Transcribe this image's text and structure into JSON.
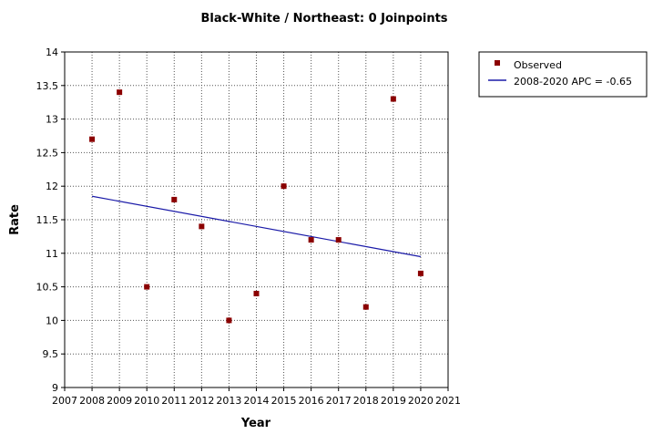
{
  "chart_data": {
    "type": "scatter",
    "title": "Black-White / Northeast: 0 Joinpoints",
    "xlabel": "Year",
    "ylabel": "Rate",
    "xlim": [
      2007,
      2021
    ],
    "ylim": [
      9,
      14
    ],
    "x_ticks": [
      2007,
      2008,
      2009,
      2010,
      2011,
      2012,
      2013,
      2014,
      2015,
      2016,
      2017,
      2018,
      2019,
      2020,
      2021
    ],
    "y_ticks": [
      9,
      9.5,
      10,
      10.5,
      11,
      11.5,
      12,
      12.5,
      13,
      13.5,
      14
    ],
    "y_tick_labels": [
      "9",
      "9.5",
      "10",
      "10.5",
      "11",
      "11.5",
      "12",
      "12.5",
      "13",
      "13.5",
      "14"
    ],
    "grid": true,
    "legend_position": "right",
    "series": [
      {
        "name": "Observed",
        "kind": "points",
        "color": "#8b0000",
        "x": [
          2008,
          2009,
          2010,
          2011,
          2012,
          2013,
          2014,
          2015,
          2016,
          2017,
          2018,
          2019,
          2020
        ],
        "y": [
          12.7,
          13.4,
          10.5,
          11.8,
          11.4,
          10.0,
          10.4,
          12.0,
          11.2,
          11.2,
          10.2,
          13.3,
          10.7
        ]
      },
      {
        "name": "2008-2020 APC  = -0.65",
        "kind": "line",
        "color": "#1a1aa8",
        "x": [
          2008,
          2020
        ],
        "y": [
          11.85,
          10.95
        ]
      }
    ]
  }
}
